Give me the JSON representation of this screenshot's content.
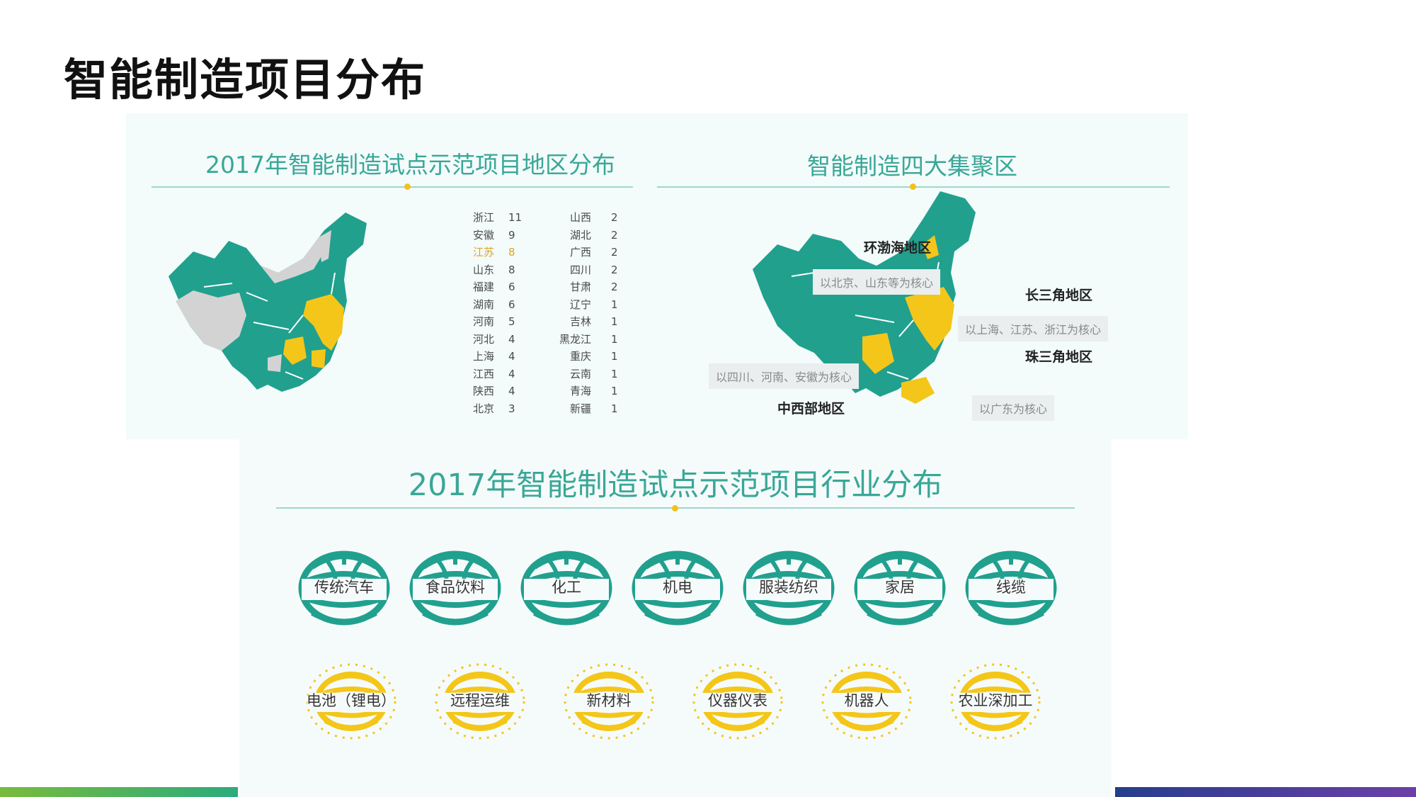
{
  "page_title": "智能制造项目分布",
  "region_panel": {
    "title": "2017年智能制造试点示范项目地区分布",
    "left_column": [
      {
        "province": "浙江",
        "count": "11"
      },
      {
        "province": "安徽",
        "count": "9"
      },
      {
        "province": "江苏",
        "count": "8"
      },
      {
        "province": "山东",
        "count": "8"
      },
      {
        "province": "福建",
        "count": "6"
      },
      {
        "province": "湖南",
        "count": "6"
      },
      {
        "province": "河南",
        "count": "5"
      },
      {
        "province": "河北",
        "count": "4"
      },
      {
        "province": "上海",
        "count": "4"
      },
      {
        "province": "江西",
        "count": "4"
      },
      {
        "province": "陕西",
        "count": "4"
      },
      {
        "province": "北京",
        "count": "3"
      }
    ],
    "right_column": [
      {
        "province": "山西",
        "count": "2"
      },
      {
        "province": "湖北",
        "count": "2"
      },
      {
        "province": "广西",
        "count": "2"
      },
      {
        "province": "四川",
        "count": "2"
      },
      {
        "province": "甘肃",
        "count": "2"
      },
      {
        "province": "辽宁",
        "count": "1"
      },
      {
        "province": "吉林",
        "count": "1"
      },
      {
        "province": "黑龙江",
        "count": "1"
      },
      {
        "province": "重庆",
        "count": "1"
      },
      {
        "province": "云南",
        "count": "1"
      },
      {
        "province": "青海",
        "count": "1"
      },
      {
        "province": "新疆",
        "count": "1"
      }
    ],
    "highlight_color": "#e0a51f"
  },
  "cluster_panel": {
    "title": "智能制造四大集聚区",
    "regions": {
      "bohai": "环渤海地区",
      "bohai_core": "以北京、山东等为核心",
      "yangtze": "长三角地区",
      "yangtze_core": "以上海、江苏、浙江为核心",
      "pearl": "珠三角地区",
      "pearl_core": "以广东为核心",
      "central_west": "中西部地区",
      "central_west_core": "以四川、河南、安徽为核心"
    }
  },
  "industry_panel": {
    "title": "2017年智能制造试点示范项目行业分布",
    "row1": [
      "传统汽车",
      "食品饮料",
      "化工",
      "机电",
      "服装纺织",
      "家居",
      "线缆"
    ],
    "row2": [
      "电池（锂电）",
      "远程运维",
      "新材料",
      "仪器仪表",
      "机器人",
      "农业深加工"
    ]
  },
  "colors": {
    "teal": "#21a08e",
    "yellow": "#f4c619",
    "grey": "#d3d3d3",
    "title_teal": "#3aa797"
  }
}
